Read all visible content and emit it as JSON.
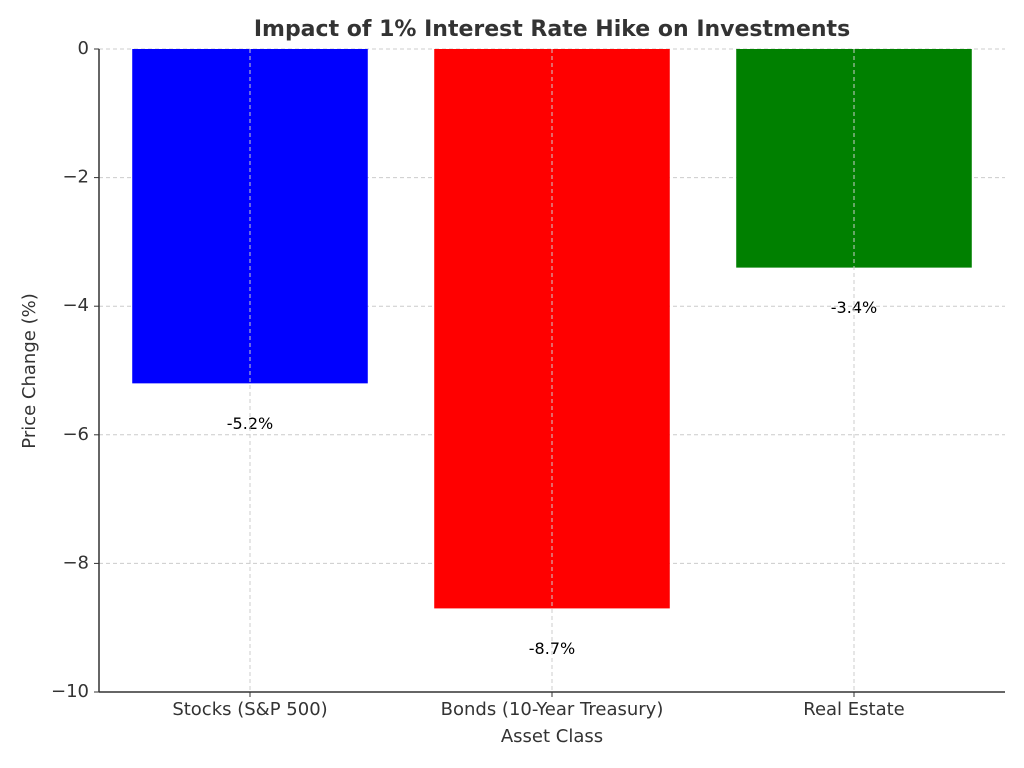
{
  "chart_data": {
    "type": "bar",
    "title": "Impact of 1% Interest Rate Hike on Investments",
    "x_label": "Asset Class",
    "y_label": "Price Change (%)",
    "categories": [
      "Stocks (S&P 500)",
      "Bonds (10-Year Treasury)",
      "Real Estate"
    ],
    "values": [
      -5.2,
      -8.7,
      -3.4
    ],
    "value_labels": [
      "-5.2%",
      "-8.7%",
      "-3.4%"
    ],
    "colors": [
      "#0000ff",
      "#ff0000",
      "#008000"
    ],
    "ylim": [
      -10,
      0
    ],
    "yticks": [
      {
        "value": -10,
        "label": "−10"
      },
      {
        "value": -8,
        "label": "−8"
      },
      {
        "value": -6,
        "label": "−6"
      },
      {
        "value": -4,
        "label": "−4"
      },
      {
        "value": -2,
        "label": "−2"
      },
      0
    ],
    "grid": true
  }
}
